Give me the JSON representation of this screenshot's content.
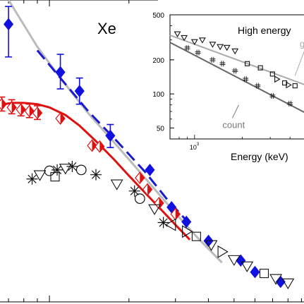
{
  "chart_data": [
    {
      "id": "main",
      "type": "scatter",
      "title": "",
      "panel_label": "Xe",
      "xlabel": "",
      "ylabel": "",
      "xlog": true,
      "ylog": true,
      "x_range": [
        0.65,
        9.2
      ],
      "y_range": [
        0.0006,
        1.9
      ],
      "grid": false,
      "legend": "none",
      "series": [
        {
          "marker": "diamond-filled",
          "color": "#1010e0",
          "points": [
            {
              "x": 0.7,
              "y": 1.0,
              "err_lo": 0.42,
              "err_hi": 1.6
            },
            {
              "x": 1.1,
              "y": 0.28,
              "err_lo": 0.18,
              "err_hi": 0.45
            },
            {
              "x": 1.3,
              "y": 0.17,
              "err_lo": 0.12,
              "err_hi": 0.24
            },
            {
              "x": 1.7,
              "y": 0.052,
              "err_lo": 0.038,
              "err_hi": 0.07
            },
            {
              "x": 2.4,
              "y": 0.021
            },
            {
              "x": 2.9,
              "y": 0.0078
            },
            {
              "x": 3.3,
              "y": 0.0053
            },
            {
              "x": 4.0,
              "y": 0.0032
            },
            {
              "x": 5.3,
              "y": 0.0019
            },
            {
              "x": 6.0,
              "y": 0.0014
            },
            {
              "x": 7.5,
              "y": 0.00108
            }
          ]
        },
        {
          "marker": "diamond-half",
          "color": "#e01010",
          "points": [
            {
              "x": 0.66,
              "y": 0.12,
              "err_lo": 0.1,
              "err_hi": 0.145
            },
            {
              "x": 0.72,
              "y": 0.11,
              "err_lo": 0.093,
              "err_hi": 0.135
            },
            {
              "x": 0.78,
              "y": 0.104,
              "err_lo": 0.088,
              "err_hi": 0.125
            },
            {
              "x": 0.84,
              "y": 0.1,
              "err_lo": 0.084,
              "err_hi": 0.12
            },
            {
              "x": 0.9,
              "y": 0.095,
              "err_lo": 0.08,
              "err_hi": 0.115
            },
            {
              "x": 1.1,
              "y": 0.082
            },
            {
              "x": 1.45,
              "y": 0.04
            },
            {
              "x": 1.55,
              "y": 0.039
            },
            {
              "x": 2.2,
              "y": 0.017
            },
            {
              "x": 2.35,
              "y": 0.0125
            },
            {
              "x": 2.6,
              "y": 0.0087
            },
            {
              "x": 3.0,
              "y": 0.0065
            }
          ]
        },
        {
          "marker": "open-mixed",
          "color": "#111111",
          "points": [
            {
              "x": 0.92,
              "y": 0.0185,
              "shape": "triangle-down"
            },
            {
              "x": 1.0,
              "y": 0.0205,
              "shape": "circle"
            },
            {
              "x": 1.07,
              "y": 0.021,
              "shape": "asterisk"
            },
            {
              "x": 1.15,
              "y": 0.022,
              "shape": "triangle-down"
            },
            {
              "x": 1.22,
              "y": 0.023,
              "shape": "asterisk"
            },
            {
              "x": 1.32,
              "y": 0.021,
              "shape": "circle"
            },
            {
              "x": 0.86,
              "y": 0.0165,
              "shape": "asterisk"
            },
            {
              "x": 1.05,
              "y": 0.0175,
              "shape": "square"
            },
            {
              "x": 1.5,
              "y": 0.0185,
              "shape": "asterisk"
            },
            {
              "x": 1.8,
              "y": 0.0145,
              "shape": "triangle-down"
            },
            {
              "x": 2.1,
              "y": 0.012,
              "shape": "asterisk"
            },
            {
              "x": 2.2,
              "y": 0.0098,
              "shape": "circle"
            },
            {
              "x": 2.5,
              "y": 0.0075,
              "shape": "triangle-down"
            },
            {
              "x": 2.7,
              "y": 0.0052,
              "shape": "asterisk"
            },
            {
              "x": 2.9,
              "y": 0.0049,
              "shape": "triangle-left"
            },
            {
              "x": 3.3,
              "y": 0.0041,
              "shape": "triangle-right"
            },
            {
              "x": 3.6,
              "y": 0.0036,
              "shape": "square"
            },
            {
              "x": 4.1,
              "y": 0.0029,
              "shape": "triangle-down"
            },
            {
              "x": 4.5,
              "y": 0.0024,
              "shape": "triangle-right"
            },
            {
              "x": 5.0,
              "y": 0.00195,
              "shape": "triangle-down"
            },
            {
              "x": 5.6,
              "y": 0.00165,
              "shape": "triangle-down"
            },
            {
              "x": 6.5,
              "y": 0.00135,
              "shape": "square"
            },
            {
              "x": 7.2,
              "y": 0.00118,
              "shape": "triangle-down"
            },
            {
              "x": 8.0,
              "y": 0.00105,
              "shape": "triangle-down"
            }
          ]
        }
      ],
      "curves": [
        {
          "color": "#bbbbbb",
          "style": "solid",
          "x": [
            0.7,
            0.9,
            1.1,
            1.4,
            1.8,
            2.3,
            2.9,
            3.6,
            4.5
          ],
          "y": [
            1.9,
            0.55,
            0.24,
            0.095,
            0.04,
            0.017,
            0.0075,
            0.0036,
            0.0018
          ]
        },
        {
          "color": "#1a1ad0",
          "style": "dashed",
          "x": [
            0.9,
            1.1,
            1.4,
            1.8,
            2.3,
            2.8,
            3.3
          ],
          "y": [
            0.5,
            0.24,
            0.1,
            0.045,
            0.02,
            0.0095,
            0.0055
          ]
        },
        {
          "color": "#e01010",
          "style": "solid",
          "x": [
            0.65,
            0.72,
            0.8,
            0.9,
            1.0,
            1.15,
            1.3,
            1.5,
            1.75,
            2.0,
            2.3,
            2.65,
            3.0,
            3.4
          ],
          "y": [
            0.118,
            0.124,
            0.124,
            0.12,
            0.11,
            0.09,
            0.068,
            0.045,
            0.028,
            0.018,
            0.0115,
            0.0073,
            0.0049,
            0.0033
          ]
        }
      ]
    },
    {
      "id": "inset",
      "type": "scatter",
      "title": "High energy",
      "xlabel": "Energy (keV)",
      "ylabel": "",
      "xlog": true,
      "ylog": true,
      "x_range": [
        700,
        5000
      ],
      "y_range": [
        40,
        500
      ],
      "x_ticks": [
        {
          "value": 1000,
          "label": "10"
        }
      ],
      "x_tick_exponent": "3",
      "y_ticks": [
        {
          "value": 50,
          "label": "50"
        },
        {
          "value": 100,
          "label": "100"
        },
        {
          "value": 200,
          "label": "200"
        },
        {
          "value": 500,
          "label": "500"
        }
      ],
      "annotations": [
        {
          "text": "count",
          "color": "#777777",
          "x": 1500,
          "y": 50,
          "pointer_x": 1900,
          "pointer_y": 80
        },
        {
          "text": "gu",
          "color": "#aaaaaa",
          "x": 4600,
          "y": 260,
          "pointer_x": 4300,
          "pointer_y": 145
        }
      ],
      "series": [
        {
          "marker": "triangle-down",
          "color": "#111111",
          "points": [
            {
              "x": 780,
              "y": 340
            },
            {
              "x": 860,
              "y": 315
            },
            {
              "x": 1000,
              "y": 290
            },
            {
              "x": 1120,
              "y": 300
            },
            {
              "x": 1300,
              "y": 275
            },
            {
              "x": 1450,
              "y": 262
            },
            {
              "x": 1600,
              "y": 258
            },
            {
              "x": 1800,
              "y": 240
            }
          ]
        },
        {
          "marker": "square-open",
          "color": "#111111",
          "points": [
            {
              "x": 2150,
              "y": 185
            },
            {
              "x": 2600,
              "y": 170
            },
            {
              "x": 3100,
              "y": 150
            },
            {
              "x": 3700,
              "y": 125
            },
            {
              "x": 4300,
              "y": 118
            }
          ]
        },
        {
          "marker": "triangle-right",
          "color": "#111111",
          "points": [
            {
              "x": 3300,
              "y": 135
            },
            {
              "x": 3900,
              "y": 120
            }
          ]
        },
        {
          "marker": "sharp",
          "color": "#111111",
          "points": [
            {
              "x": 900,
              "y": 255
            },
            {
              "x": 1050,
              "y": 232
            },
            {
              "x": 1300,
              "y": 200
            },
            {
              "x": 1500,
              "y": 185
            },
            {
              "x": 1800,
              "y": 160
            },
            {
              "x": 2100,
              "y": 135
            },
            {
              "x": 2500,
              "y": 118
            },
            {
              "x": 3100,
              "y": 96
            },
            {
              "x": 4000,
              "y": 82
            }
          ]
        }
      ],
      "curves": [
        {
          "color": "#aaaaaa",
          "style": "solid",
          "x": [
            700,
            5000
          ],
          "y": [
            330,
            120
          ]
        },
        {
          "color": "#666666",
          "style": "solid",
          "x": [
            700,
            5000
          ],
          "y": [
            285,
            68
          ]
        }
      ]
    }
  ]
}
